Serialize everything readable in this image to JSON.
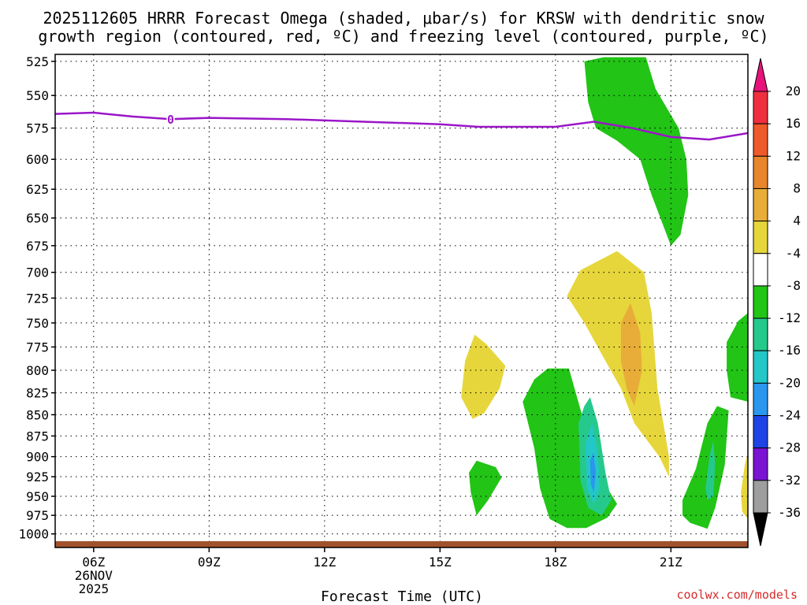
{
  "chart_data": {
    "type": "heatmap",
    "title_lines": [
      "2025112605 HRRR Forecast Omega (shaded, μbar/s) for KRSW with dendritic snow",
      "growth region (contoured, red, ºC) and freezing level (contoured, purple, ºC)"
    ],
    "xlabel": "Forecast Time (UTC)",
    "x_ticks": [
      {
        "hour": 6,
        "label": "06Z",
        "date_lines": [
          "26NOV",
          "2025"
        ]
      },
      {
        "hour": 9,
        "label": "09Z"
      },
      {
        "hour": 12,
        "label": "12Z"
      },
      {
        "hour": 15,
        "label": "15Z"
      },
      {
        "hour": 18,
        "label": "18Z"
      },
      {
        "hour": 21,
        "label": "21Z"
      }
    ],
    "xlim": [
      5,
      23
    ],
    "y_ticks": [
      525,
      550,
      575,
      600,
      625,
      650,
      675,
      700,
      725,
      750,
      775,
      800,
      825,
      850,
      875,
      900,
      925,
      950,
      975,
      1000
    ],
    "ylim": [
      520,
      1010
    ],
    "y_scale": "log",
    "y_reversed": true,
    "grid": true,
    "colorbar": {
      "labels": [
        "20",
        "16",
        "12",
        "8",
        "4",
        "-4",
        "-8",
        "-12",
        "-16",
        "-20",
        "-24",
        "-28",
        "-32",
        "-36"
      ],
      "colors": [
        "#ef2f3f",
        "#ef5a2a",
        "#e8862c",
        "#e8ad38",
        "#e6d63b",
        "#ffffff",
        "#22c416",
        "#26c98c",
        "#24c7c7",
        "#2a96ee",
        "#1e44e6",
        "#7a14d2",
        "#a412c2",
        "#9e9e9e"
      ],
      "top_arrow_color": "#e8127c",
      "bottom_arrow_color": "#000000"
    },
    "freezing_level": {
      "label": "0",
      "color": "#9a16c8",
      "points": [
        [
          5.0,
          564
        ],
        [
          6.0,
          563
        ],
        [
          7.0,
          566
        ],
        [
          8.0,
          568
        ],
        [
          9.0,
          567
        ],
        [
          11.0,
          568
        ],
        [
          13.0,
          570
        ],
        [
          15.0,
          572
        ],
        [
          16.0,
          574
        ],
        [
          17.0,
          574
        ],
        [
          18.0,
          574
        ],
        [
          19.0,
          570
        ],
        [
          20.0,
          575
        ],
        [
          21.0,
          582
        ],
        [
          22.0,
          584
        ],
        [
          23.0,
          579
        ]
      ]
    },
    "shaded_regions": [
      {
        "color": "#22c416",
        "points": [
          [
            18.75,
            525
          ],
          [
            19.25,
            522
          ],
          [
            20.35,
            522
          ],
          [
            20.6,
            545
          ],
          [
            21.2,
            575
          ],
          [
            21.4,
            600
          ],
          [
            21.45,
            630
          ],
          [
            21.25,
            665
          ],
          [
            21.0,
            675
          ],
          [
            20.5,
            630
          ],
          [
            20.2,
            600
          ],
          [
            19.6,
            585
          ],
          [
            19.05,
            575
          ],
          [
            18.85,
            555
          ]
        ]
      },
      {
        "color": "#e6d63b",
        "points": [
          [
            18.3,
            723
          ],
          [
            18.65,
            698
          ],
          [
            19.6,
            680
          ],
          [
            20.3,
            700
          ],
          [
            20.5,
            740
          ],
          [
            20.65,
            820
          ],
          [
            20.95,
            900
          ],
          [
            20.95,
            925
          ],
          [
            20.7,
            900
          ],
          [
            20.05,
            860
          ],
          [
            19.7,
            820
          ],
          [
            19.3,
            790
          ],
          [
            18.75,
            750
          ]
        ]
      },
      {
        "color": "#e8ad38",
        "points": [
          [
            19.7,
            750
          ],
          [
            19.95,
            730
          ],
          [
            20.2,
            760
          ],
          [
            20.25,
            800
          ],
          [
            20.05,
            840
          ],
          [
            19.85,
            820
          ],
          [
            19.7,
            790
          ]
        ]
      },
      {
        "color": "#e6d63b",
        "points": [
          [
            15.55,
            830
          ],
          [
            15.65,
            790
          ],
          [
            15.9,
            762
          ],
          [
            16.2,
            772
          ],
          [
            16.7,
            795
          ],
          [
            16.55,
            820
          ],
          [
            16.15,
            848
          ],
          [
            15.85,
            855
          ]
        ]
      },
      {
        "color": "#22c416",
        "points": [
          [
            17.15,
            835
          ],
          [
            17.45,
            810
          ],
          [
            17.8,
            798
          ],
          [
            18.35,
            798
          ],
          [
            18.75,
            860
          ],
          [
            19.1,
            920
          ],
          [
            19.6,
            960
          ],
          [
            19.35,
            978
          ],
          [
            18.8,
            992
          ],
          [
            18.3,
            992
          ],
          [
            17.85,
            980
          ],
          [
            17.6,
            940
          ],
          [
            17.45,
            890
          ]
        ]
      },
      {
        "color": "#26c98c",
        "points": [
          [
            18.6,
            860
          ],
          [
            18.75,
            840
          ],
          [
            18.9,
            830
          ],
          [
            19.1,
            860
          ],
          [
            19.3,
            920
          ],
          [
            19.45,
            955
          ],
          [
            19.2,
            975
          ],
          [
            18.85,
            965
          ],
          [
            18.65,
            930
          ]
        ]
      },
      {
        "color": "#24c7c7",
        "points": [
          [
            18.78,
            885
          ],
          [
            18.95,
            860
          ],
          [
            19.1,
            895
          ],
          [
            19.15,
            940
          ],
          [
            19.0,
            960
          ],
          [
            18.82,
            940
          ]
        ]
      },
      {
        "color": "#2a96ee",
        "points": [
          [
            18.9,
            905
          ],
          [
            18.98,
            895
          ],
          [
            19.05,
            918
          ],
          [
            19.0,
            945
          ],
          [
            18.92,
            935
          ]
        ]
      },
      {
        "color": "#22c416",
        "points": [
          [
            15.75,
            920
          ],
          [
            15.95,
            905
          ],
          [
            16.45,
            913
          ],
          [
            16.6,
            926
          ],
          [
            16.25,
            955
          ],
          [
            15.95,
            975
          ],
          [
            15.8,
            945
          ]
        ]
      },
      {
        "color": "#22c416",
        "points": [
          [
            21.3,
            955
          ],
          [
            21.65,
            915
          ],
          [
            21.95,
            860
          ],
          [
            22.2,
            840
          ],
          [
            22.5,
            845
          ],
          [
            22.4,
            910
          ],
          [
            22.15,
            965
          ],
          [
            21.95,
            993
          ],
          [
            21.5,
            985
          ],
          [
            21.3,
            975
          ]
        ]
      },
      {
        "color": "#26c98c",
        "points": [
          [
            21.9,
            940
          ],
          [
            22.0,
            900
          ],
          [
            22.1,
            880
          ],
          [
            22.15,
            910
          ],
          [
            22.1,
            950
          ],
          [
            21.95,
            955
          ]
        ]
      },
      {
        "color": "#22c416",
        "points": [
          [
            22.45,
            770
          ],
          [
            22.75,
            748
          ],
          [
            23.0,
            740
          ],
          [
            23.0,
            835
          ],
          [
            22.55,
            830
          ],
          [
            22.45,
            800
          ]
        ]
      },
      {
        "color": "#e6d63b",
        "points": [
          [
            22.82,
            945
          ],
          [
            22.92,
            910
          ],
          [
            23.0,
            895
          ],
          [
            23.0,
            980
          ],
          [
            22.85,
            970
          ]
        ]
      }
    ],
    "ground_color": "#a0522d",
    "credit": "coolwx.com/models"
  }
}
